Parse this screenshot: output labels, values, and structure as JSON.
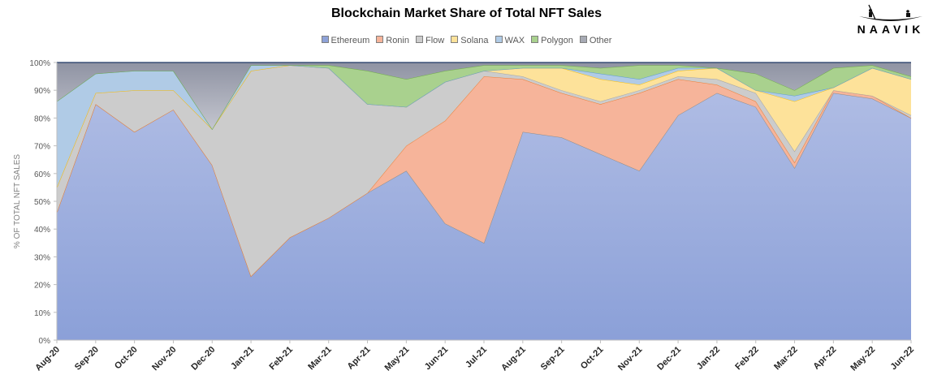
{
  "brand": {
    "logo_text": "NAAVIK"
  },
  "chart_data": {
    "type": "area",
    "stacked": true,
    "title": "Blockchain Market Share of Total NFT Sales",
    "xlabel": "",
    "ylabel": "% OF TOTAL NFT SALES",
    "ylim": [
      0,
      100
    ],
    "yticks": [
      "0%",
      "10%",
      "20%",
      "30%",
      "40%",
      "50%",
      "60%",
      "70%",
      "80%",
      "90%",
      "100%"
    ],
    "grid": false,
    "legend": "top",
    "categories": [
      "Aug-20",
      "Sep-20",
      "Oct-20",
      "Nov-20",
      "Dec-20",
      "Jan-21",
      "Feb-21",
      "Mar-21",
      "Apr-21",
      "May-21",
      "Jun-21",
      "Jul-21",
      "Aug-21",
      "Sep-21",
      "Oct-21",
      "Nov-21",
      "Dec-21",
      "Jan-22",
      "Feb-22",
      "Mar-22",
      "Apr-22",
      "May-22",
      "Jun-22"
    ],
    "series": [
      {
        "name": "Ethereum",
        "color": "#8ea2d8",
        "line": "#8c8c8c",
        "values": [
          46,
          85,
          75,
          83,
          63,
          23,
          37,
          44,
          53,
          61,
          42,
          35,
          75,
          73,
          67,
          61,
          81,
          89,
          84,
          62,
          89,
          87,
          80
        ]
      },
      {
        "name": "Ronin",
        "color": "#f6b49a",
        "line": "#ed7d31",
        "values": [
          0,
          0,
          0,
          0,
          0,
          0,
          0,
          0,
          0,
          9,
          37,
          60,
          19,
          16,
          18,
          28,
          13,
          3,
          2,
          2,
          1,
          1,
          0
        ]
      },
      {
        "name": "Flow",
        "color": "#cccccc",
        "line": "#a5a5a5",
        "values": [
          9,
          4,
          15,
          7,
          13,
          74,
          62,
          54,
          32,
          14,
          14,
          2,
          1,
          1,
          1,
          1,
          1,
          2,
          3,
          4,
          0,
          0,
          1
        ]
      },
      {
        "name": "Solana",
        "color": "#fde29a",
        "line": "#ffc000",
        "values": [
          0,
          0,
          0,
          0,
          0,
          0,
          0,
          0,
          0,
          0,
          0,
          0,
          3,
          8,
          8,
          2,
          2,
          4,
          1,
          18,
          1,
          10,
          13
        ]
      },
      {
        "name": "WAX",
        "color": "#b0cbe6",
        "line": "#5b9bd5",
        "values": [
          31,
          7,
          7,
          7,
          0,
          2,
          0,
          0,
          0,
          0,
          0,
          0,
          0,
          0,
          2,
          2,
          1,
          0,
          0,
          2,
          0,
          0,
          0
        ]
      },
      {
        "name": "Polygon",
        "color": "#a9d18e",
        "line": "#70ad47",
        "values": [
          0,
          0,
          0,
          0,
          0,
          0,
          0,
          1,
          12,
          10,
          4,
          2,
          1,
          1,
          2,
          5,
          1,
          0,
          6,
          2,
          7,
          1,
          1
        ]
      },
      {
        "name": "Other",
        "color": "#a7aab4",
        "line": "#1f3864",
        "values": [
          14,
          4,
          3,
          3,
          24,
          1,
          1,
          1,
          3,
          6,
          3,
          1,
          1,
          1,
          2,
          1,
          1,
          2,
          4,
          10,
          2,
          1,
          5
        ]
      }
    ]
  }
}
